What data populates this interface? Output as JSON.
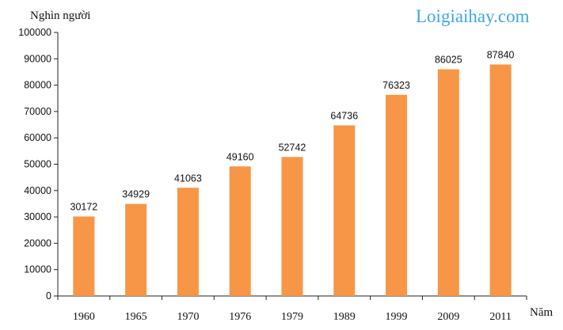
{
  "watermark": "Loigiaihay.com",
  "colors": {
    "bar": "#f79646",
    "axis": "#222222",
    "watermark": "#3fa7e0"
  },
  "chart_data": {
    "type": "bar",
    "title": "",
    "ylabel": "Nghìn người",
    "xlabel": "Năm",
    "categories": [
      "1960",
      "1965",
      "1970",
      "1976",
      "1979",
      "1989",
      "1999",
      "2009",
      "2011"
    ],
    "values": [
      30172,
      34929,
      41063,
      49160,
      52742,
      64736,
      76323,
      86025,
      87840
    ],
    "data_labels": [
      "30172",
      "34929",
      "41063",
      "49160",
      "52742",
      "64736",
      "76323",
      "86025",
      "87840"
    ],
    "ylim": [
      0,
      100000
    ],
    "yticks": [
      0,
      10000,
      20000,
      30000,
      40000,
      50000,
      60000,
      70000,
      80000,
      90000,
      100000
    ],
    "ytick_labels": [
      "0",
      "10000",
      "20000",
      "30000",
      "40000",
      "50000",
      "60000",
      "70000",
      "80000",
      "90000",
      "100000"
    ],
    "grid": false,
    "legend": "none"
  }
}
